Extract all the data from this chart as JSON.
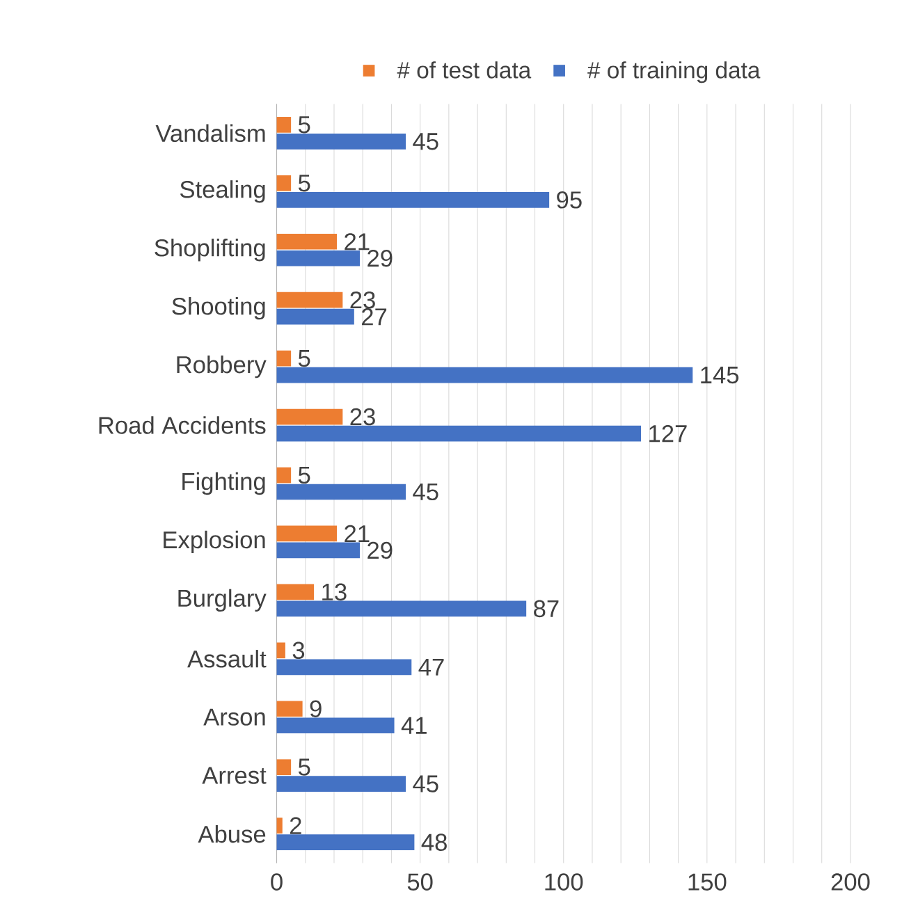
{
  "chart_data": {
    "type": "bar",
    "orientation": "horizontal",
    "categories": [
      "Vandalism",
      "Stealing",
      "Shoplifting",
      "Shooting",
      "Robbery",
      "Road Accidents",
      "Fighting",
      "Explosion",
      "Burglary",
      "Assault",
      "Arson",
      "Arrest",
      "Abuse"
    ],
    "series": [
      {
        "name": "# of test data",
        "color": "#ed7d31",
        "values": [
          5,
          5,
          21,
          23,
          5,
          23,
          5,
          21,
          13,
          3,
          9,
          5,
          2
        ]
      },
      {
        "name": "# of training data",
        "color": "#4472c4",
        "values": [
          45,
          95,
          29,
          27,
          145,
          127,
          45,
          29,
          87,
          47,
          41,
          45,
          48
        ]
      }
    ],
    "xlim": [
      0,
      200
    ],
    "xticks": [
      0,
      {
        "value": 10,
        "label": null
      },
      {
        "value": 20,
        "label": null
      },
      {
        "value": 30,
        "label": null
      },
      {
        "value": 40,
        "label": null
      },
      50,
      {
        "value": 60,
        "label": null
      },
      {
        "value": 70,
        "label": null
      },
      {
        "value": 80,
        "label": null
      },
      {
        "value": 90,
        "label": null
      },
      100,
      {
        "value": 110,
        "label": null
      },
      {
        "value": 120,
        "label": null
      },
      {
        "value": 130,
        "label": null
      },
      {
        "value": 140,
        "label": null
      },
      150,
      {
        "value": 160,
        "label": null
      },
      {
        "value": 170,
        "label": null
      },
      {
        "value": 180,
        "label": null
      },
      {
        "value": 190,
        "label": null
      },
      200
    ],
    "grid": "x",
    "legend": "top",
    "data_labels": true
  }
}
